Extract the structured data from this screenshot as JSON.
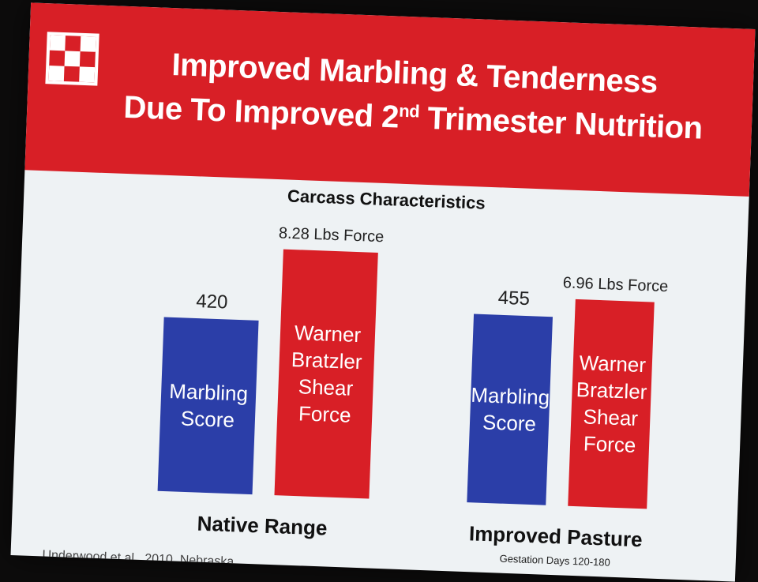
{
  "logo": {
    "name": "checkerboard-logo-icon"
  },
  "title": {
    "line1": "Improved Marbling & Tenderness",
    "line2_prefix": "Due To Improved 2",
    "line2_sup": "nd",
    "line2_suffix": " Trimester Nutrition"
  },
  "colors": {
    "banner": "#d81f26",
    "blue": "#2b3ea8",
    "red": "#d81f26"
  },
  "footer_note": "Underwood et al., 2010, Nebraska",
  "chart_data": {
    "type": "bar",
    "title": "Carcass Characteristics",
    "categories": [
      "Native Range",
      "Improved Pasture"
    ],
    "category_notes": [
      "",
      "Gestation Days 120-180"
    ],
    "series": [
      {
        "bar_label": [
          "Marbling",
          "Score"
        ],
        "color": "#2b3ea8",
        "values": [
          420,
          455
        ],
        "value_labels": [
          "420",
          "455"
        ],
        "scale_max": 610
      },
      {
        "bar_label": [
          "Warner",
          "Bratzler",
          "Shear",
          "Force"
        ],
        "color": "#d81f26",
        "values": [
          8.28,
          6.96
        ],
        "value_labels": [
          "8.28 Lbs Force",
          "6.96 Lbs Force"
        ],
        "scale_max": 8.5
      }
    ]
  }
}
